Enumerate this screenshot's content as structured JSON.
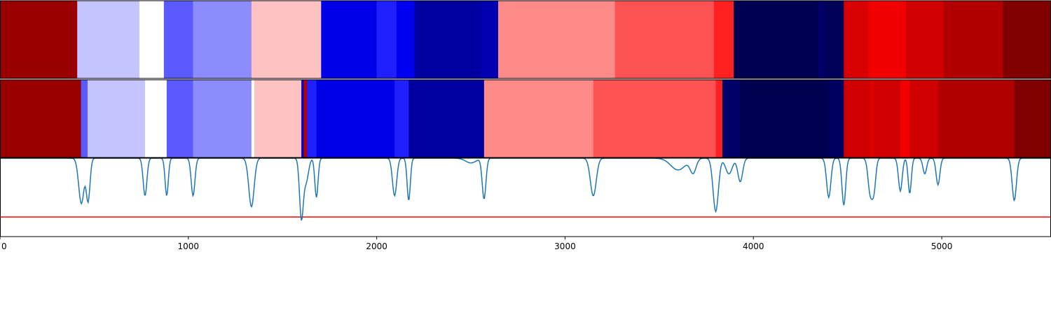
{
  "chart_data": {
    "type": "heatmap",
    "title": "",
    "xlabel": "",
    "ylabel": "",
    "xlim": [
      0,
      5580
    ],
    "x_ticks": [
      0,
      1000,
      2000,
      3000,
      4000,
      5000
    ],
    "x_tick_labels": [
      "0",
      "1000",
      "2000",
      "3000",
      "4000",
      "5000"
    ],
    "colormap": "seismic",
    "grid": false,
    "legend": "none",
    "band_top_segments": [
      {
        "start": 0,
        "end": 410,
        "color": "#990000"
      },
      {
        "start": 410,
        "end": 740,
        "color": "#c4c4ff"
      },
      {
        "start": 740,
        "end": 870,
        "color": "#ffffff"
      },
      {
        "start": 870,
        "end": 1025,
        "color": "#5a5aff"
      },
      {
        "start": 1025,
        "end": 1335,
        "color": "#8c8cff"
      },
      {
        "start": 1335,
        "end": 1705,
        "color": "#ffc2c2"
      },
      {
        "start": 1705,
        "end": 2000,
        "color": "#0000e8"
      },
      {
        "start": 2000,
        "end": 2105,
        "color": "#2020ff"
      },
      {
        "start": 2105,
        "end": 2200,
        "color": "#0000f0"
      },
      {
        "start": 2200,
        "end": 2555,
        "color": "#0000a0"
      },
      {
        "start": 2555,
        "end": 2645,
        "color": "#0000b0"
      },
      {
        "start": 2645,
        "end": 3265,
        "color": "#ff8a8a"
      },
      {
        "start": 3265,
        "end": 3790,
        "color": "#ff5252"
      },
      {
        "start": 3790,
        "end": 3895,
        "color": "#ff2020"
      },
      {
        "start": 3895,
        "end": 4345,
        "color": "#000050"
      },
      {
        "start": 4345,
        "end": 4375,
        "color": "#000068"
      },
      {
        "start": 4375,
        "end": 4480,
        "color": "#000058"
      },
      {
        "start": 4480,
        "end": 4610,
        "color": "#d80000"
      },
      {
        "start": 4610,
        "end": 4810,
        "color": "#f00000"
      },
      {
        "start": 4810,
        "end": 5010,
        "color": "#d00000"
      },
      {
        "start": 5010,
        "end": 5325,
        "color": "#b00000"
      },
      {
        "start": 5325,
        "end": 5580,
        "color": "#800000"
      }
    ],
    "band_bottom_segments": [
      {
        "start": 0,
        "end": 430,
        "color": "#990000"
      },
      {
        "start": 430,
        "end": 465,
        "color": "#5a5aff"
      },
      {
        "start": 465,
        "end": 770,
        "color": "#c4c4ff"
      },
      {
        "start": 770,
        "end": 885,
        "color": "#ffffff"
      },
      {
        "start": 885,
        "end": 1025,
        "color": "#5a5aff"
      },
      {
        "start": 1025,
        "end": 1335,
        "color": "#8c8cff"
      },
      {
        "start": 1335,
        "end": 1350,
        "color": "#ffffff"
      },
      {
        "start": 1350,
        "end": 1600,
        "color": "#ffc2c2"
      },
      {
        "start": 1600,
        "end": 1612,
        "color": "#0000c0"
      },
      {
        "start": 1612,
        "end": 1630,
        "color": "#b00000"
      },
      {
        "start": 1630,
        "end": 1680,
        "color": "#2020ff"
      },
      {
        "start": 1680,
        "end": 2095,
        "color": "#0000e8"
      },
      {
        "start": 2095,
        "end": 2170,
        "color": "#2020ff"
      },
      {
        "start": 2170,
        "end": 2570,
        "color": "#0000a0"
      },
      {
        "start": 2570,
        "end": 3150,
        "color": "#ff8a8a"
      },
      {
        "start": 3150,
        "end": 3800,
        "color": "#ff5252"
      },
      {
        "start": 3800,
        "end": 3835,
        "color": "#ff2020"
      },
      {
        "start": 3835,
        "end": 3930,
        "color": "#000068"
      },
      {
        "start": 3930,
        "end": 4400,
        "color": "#000050"
      },
      {
        "start": 4400,
        "end": 4480,
        "color": "#000060"
      },
      {
        "start": 4480,
        "end": 4620,
        "color": "#d00000"
      },
      {
        "start": 4620,
        "end": 4640,
        "color": "#e00000"
      },
      {
        "start": 4640,
        "end": 4780,
        "color": "#d00000"
      },
      {
        "start": 4780,
        "end": 4830,
        "color": "#f00000"
      },
      {
        "start": 4830,
        "end": 4980,
        "color": "#d00000"
      },
      {
        "start": 4980,
        "end": 5385,
        "color": "#b00000"
      },
      {
        "start": 5385,
        "end": 5580,
        "color": "#800000"
      }
    ],
    "line_series": {
      "color": "#1f77b4",
      "ylim": [
        0,
        1
      ],
      "baseline": 1.0,
      "threshold": 0.25,
      "threshold_color": "#ff0000",
      "dips": [
        {
          "x": 432,
          "y": 0.42,
          "w": 20
        },
        {
          "x": 468,
          "y": 0.46,
          "w": 14
        },
        {
          "x": 770,
          "y": 0.52,
          "w": 14
        },
        {
          "x": 885,
          "y": 0.52,
          "w": 12
        },
        {
          "x": 1025,
          "y": 0.52,
          "w": 14
        },
        {
          "x": 1335,
          "y": 0.38,
          "w": 20
        },
        {
          "x": 1600,
          "y": 0.25,
          "w": 14
        },
        {
          "x": 1625,
          "y": 0.7,
          "w": 18
        },
        {
          "x": 1680,
          "y": 0.5,
          "w": 12
        },
        {
          "x": 2095,
          "y": 0.52,
          "w": 16
        },
        {
          "x": 2170,
          "y": 0.46,
          "w": 12
        },
        {
          "x": 2500,
          "y": 0.94,
          "w": 40
        },
        {
          "x": 2570,
          "y": 0.48,
          "w": 14
        },
        {
          "x": 3150,
          "y": 0.52,
          "w": 22
        },
        {
          "x": 3600,
          "y": 0.85,
          "w": 55
        },
        {
          "x": 3680,
          "y": 0.82,
          "w": 22
        },
        {
          "x": 3800,
          "y": 0.32,
          "w": 20
        },
        {
          "x": 3870,
          "y": 0.8,
          "w": 25
        },
        {
          "x": 3930,
          "y": 0.7,
          "w": 18
        },
        {
          "x": 4400,
          "y": 0.5,
          "w": 16
        },
        {
          "x": 4480,
          "y": 0.4,
          "w": 14
        },
        {
          "x": 4620,
          "y": 0.56,
          "w": 16
        },
        {
          "x": 4640,
          "y": 0.62,
          "w": 14
        },
        {
          "x": 4780,
          "y": 0.58,
          "w": 14
        },
        {
          "x": 4830,
          "y": 0.55,
          "w": 12
        },
        {
          "x": 4910,
          "y": 0.8,
          "w": 14
        },
        {
          "x": 4980,
          "y": 0.66,
          "w": 14
        },
        {
          "x": 5385,
          "y": 0.46,
          "w": 16
        }
      ]
    }
  }
}
